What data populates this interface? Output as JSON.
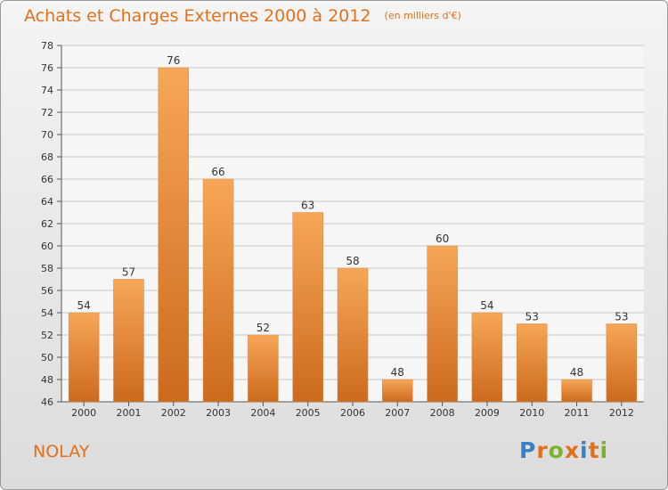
{
  "title": "Achats et Charges Externes 2000 à 2012",
  "subtitle": "(en milliers d'€)",
  "commune": "NOLAY",
  "logo": {
    "text": "Proxiti",
    "letters": [
      {
        "ch": "P",
        "color": "#3a7fc4"
      },
      {
        "ch": "r",
        "color": "#e2711d"
      },
      {
        "ch": "o",
        "color": "#7cb32b"
      },
      {
        "ch": "x",
        "color": "#e2711d"
      },
      {
        "ch": "i",
        "color": "#3a7fc4"
      },
      {
        "ch": "t",
        "color": "#e2711d"
      },
      {
        "ch": "i",
        "color": "#7cb32b"
      }
    ]
  },
  "colors": {
    "accent": "#e2711d",
    "bar_light": "#f7a658",
    "bar_dark": "#cc6a1c",
    "grid": "#c8c8c8",
    "axis_text": "#333333"
  },
  "chart_data": {
    "type": "bar",
    "categories": [
      "2000",
      "2001",
      "2002",
      "2003",
      "2004",
      "2005",
      "2006",
      "2007",
      "2008",
      "2009",
      "2010",
      "2011",
      "2012"
    ],
    "values": [
      54,
      57,
      76,
      66,
      52,
      63,
      58,
      48,
      60,
      54,
      53,
      48,
      53
    ],
    "ylim": [
      46,
      78
    ],
    "yticks": [
      46,
      48,
      50,
      52,
      54,
      56,
      58,
      60,
      62,
      64,
      66,
      68,
      70,
      72,
      74,
      76,
      78
    ],
    "grid": true,
    "title": "Achats et Charges Externes 2000 à 2012",
    "xlabel": "",
    "ylabel": ""
  }
}
